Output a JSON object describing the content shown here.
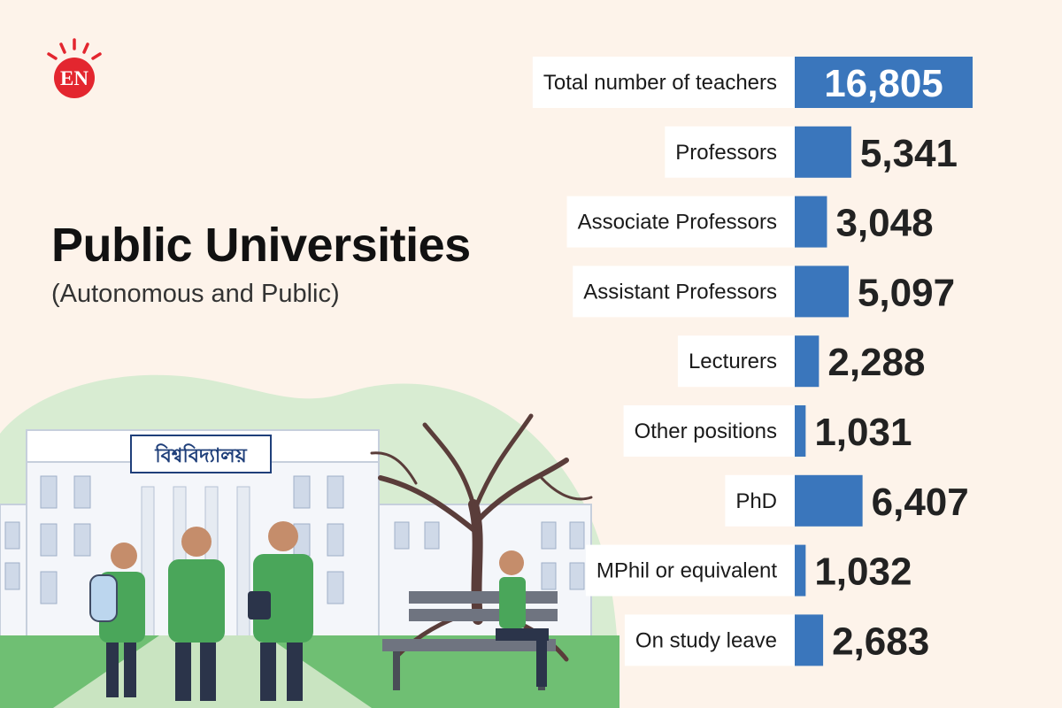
{
  "brand": {
    "logo_text": "EN"
  },
  "title": "Public Universities",
  "subtitle": "(Autonomous and Public)",
  "illustration": {
    "building_sign": "বিশ্ববিদ্যালয়"
  },
  "colors": {
    "background": "#fdf3ea",
    "bar": "#3a76bc",
    "logo_red": "#e3262f",
    "label_box": "#ffffff"
  },
  "chart_data": {
    "type": "bar",
    "orientation": "horizontal",
    "categories": [
      "Total number of teachers",
      "Professors",
      "Associate Professors",
      "Assistant Professors",
      "Lecturers",
      "Other positions",
      "PhD",
      "MPhil or equivalent",
      "On study leave"
    ],
    "values": [
      16805,
      5341,
      3048,
      5097,
      2288,
      1031,
      6407,
      1032,
      2683
    ],
    "value_labels": [
      "16,805",
      "5,341",
      "3,048",
      "5,097",
      "2,288",
      "1,031",
      "6,407",
      "1,032",
      "2,683"
    ],
    "grid": false,
    "legend": false
  }
}
